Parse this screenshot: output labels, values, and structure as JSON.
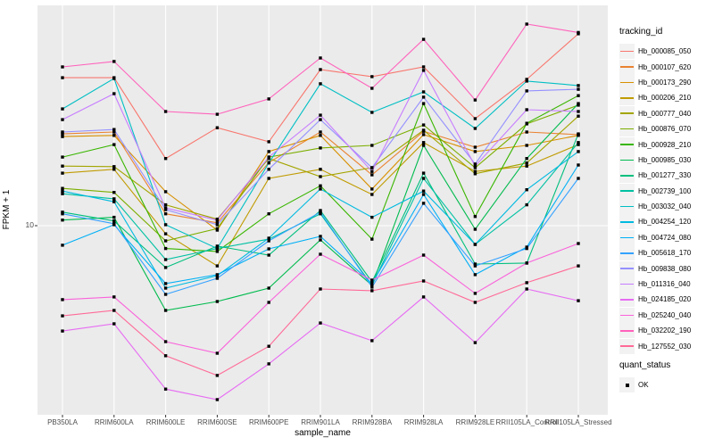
{
  "ui": {
    "y_tick_label": "10",
    "legend": {
      "tracking_title": "tracking_id",
      "quant_title": "quant_status",
      "quant_items": [
        {
          "label": "OK",
          "marker": "black-square"
        }
      ]
    },
    "colors": {
      "panel_bg": "#EBEBEB",
      "gridline": "#FFFFFF",
      "tick_mark": "#333333",
      "tick_text": "#4D4D4D",
      "point": "#000000",
      "legend_key_bg": "#F2F2F2"
    }
  },
  "chart_data": {
    "type": "line",
    "title": "",
    "xlabel": "sample_name",
    "ylabel": "FPKM + 1",
    "y_scale": "log10",
    "y_ticks": [
      10
    ],
    "ylim": [
      1.5,
      90
    ],
    "grid": "major",
    "legend_position": "right",
    "point_marker": "black-square",
    "x": [
      "PB350LA",
      "RRIM600LA",
      "RRIM600LE",
      "RRIM600SE",
      "RRIM600PE",
      "RRIM901LA",
      "RRIM928BA",
      "RRIM928LA",
      "RRIM928LE",
      "RRII105LA_Control",
      "RRII105LA_Stressed"
    ],
    "series": [
      {
        "name": "Hb_000085_050",
        "color": "#F8766D",
        "values": [
          46.1,
          46.1,
          20.0,
          27.5,
          23.8,
          50.1,
          46.6,
          51.5,
          30.2,
          45.3,
          72.5
        ]
      },
      {
        "name": "Hb_000107_620",
        "color": "#EA8331",
        "values": [
          25.8,
          26.3,
          11.3,
          10.3,
          19.2,
          26.3,
          16.9,
          26.5,
          22.5,
          26.3,
          25.6
        ]
      },
      {
        "name": "Hb_000173_290",
        "color": "#D89000",
        "values": [
          25.1,
          25.4,
          14.2,
          9.55,
          21.5,
          25.4,
          14.6,
          25.6,
          21.5,
          22.9,
          25.4
        ]
      },
      {
        "name": "Hb_000206_210",
        "color": "#C09B00",
        "values": [
          17.2,
          17.9,
          9.2,
          6.6,
          16.3,
          17.9,
          13.8,
          23.6,
          17.5,
          18.5,
          23.1
        ]
      },
      {
        "name": "Hb_000777_040",
        "color": "#A3A500",
        "values": [
          18.5,
          18.4,
          12.4,
          10.7,
          20.0,
          16.6,
          18.2,
          26.8,
          17.1,
          19.1,
          31.0
        ]
      },
      {
        "name": "Hb_000876_070",
        "color": "#7CAE00",
        "values": [
          14.7,
          14.1,
          8.55,
          9.7,
          20.3,
          22.3,
          22.9,
          28.3,
          18.2,
          28.6,
          34.7
        ]
      },
      {
        "name": "Hb_000928_210",
        "color": "#39B600",
        "values": [
          20.3,
          23.1,
          7.9,
          7.66,
          11.3,
          15.1,
          8.7,
          35.3,
          11.0,
          28.8,
          38.3
        ]
      },
      {
        "name": "Hb_000985_030",
        "color": "#00BB4E",
        "values": [
          10.6,
          10.9,
          4.17,
          4.57,
          5.25,
          8.63,
          5.4,
          22.9,
          9.64,
          20.0,
          35.3
        ]
      },
      {
        "name": "Hb_001277_330",
        "color": "#00BF7D",
        "values": [
          11.5,
          10.5,
          6.49,
          8.1,
          7.38,
          11.7,
          5.6,
          17.2,
          6.73,
          6.8,
          25.8
        ]
      },
      {
        "name": "Hb_002739_100",
        "color": "#00C1A3",
        "values": [
          13.9,
          13.2,
          7.05,
          7.9,
          8.7,
          11.3,
          5.4,
          16.3,
          8.24,
          12.4,
          23.6
        ]
      },
      {
        "name": "Hb_003032_040",
        "color": "#00BFC4",
        "values": [
          33.4,
          45.7,
          10.1,
          7.9,
          19.1,
          43.3,
          32.2,
          39.8,
          27.3,
          44.5,
          42.5
        ]
      },
      {
        "name": "Hb_004254_120",
        "color": "#00BAE0",
        "values": [
          14.3,
          12.8,
          5.25,
          5.97,
          8.79,
          14.6,
          10.9,
          14.3,
          8.24,
          14.5,
          21.5
        ]
      },
      {
        "name": "Hb_004724_080",
        "color": "#00B0F6",
        "values": [
          8.17,
          10.1,
          5.5,
          6.03,
          7.87,
          8.95,
          5.5,
          13.8,
          6.03,
          8.02,
          18.7
        ]
      },
      {
        "name": "Hb_005618_170",
        "color": "#35A2FF",
        "values": [
          11.3,
          10.2,
          4.92,
          5.81,
          8.55,
          11.5,
          5.3,
          12.6,
          6.6,
          7.9,
          16.3
        ]
      },
      {
        "name": "Hb_009838_080",
        "color": "#9590FF",
        "values": [
          26.3,
          27.0,
          11.8,
          10.1,
          17.9,
          29.9,
          18.2,
          37.7,
          18.9,
          40.2,
          40.9
        ]
      },
      {
        "name": "Hb_011316_040",
        "color": "#C77CFF",
        "values": [
          29.9,
          39.1,
          12.0,
          10.6,
          20.3,
          31.3,
          17.5,
          49.7,
          18.5,
          33.1,
          32.5
        ]
      },
      {
        "name": "Hb_024185_020",
        "color": "#E76BF3",
        "values": [
          3.37,
          3.63,
          1.85,
          1.66,
          2.4,
          3.66,
          3.05,
          4.79,
          2.99,
          5.2,
          4.61
        ]
      },
      {
        "name": "Hb_025240_040",
        "color": "#FA62DB",
        "values": [
          4.66,
          4.79,
          3.02,
          2.68,
          4.53,
          7.45,
          5.7,
          7.38,
          4.97,
          6.8,
          8.32
        ]
      },
      {
        "name": "Hb_032202_190",
        "color": "#FF62BC",
        "values": [
          51.5,
          54.5,
          32.5,
          31.6,
          37.0,
          56.5,
          41.3,
          68.5,
          36.6,
          80.2,
          73.5
        ]
      },
      {
        "name": "Hb_127552_030",
        "color": "#FF6A98",
        "values": [
          3.94,
          4.17,
          2.61,
          2.13,
          2.88,
          5.2,
          5.11,
          5.65,
          4.53,
          5.55,
          6.6
        ]
      }
    ]
  }
}
